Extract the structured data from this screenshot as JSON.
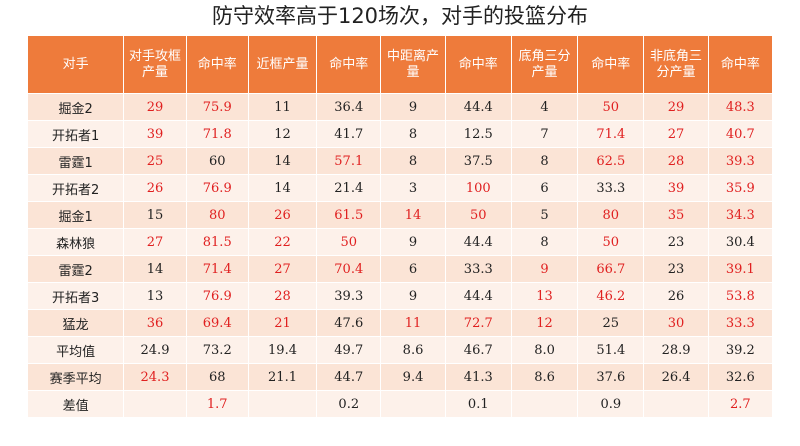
{
  "title": "防守效率高于120场次，对手的投篮分布",
  "headers": [
    "对手",
    "对手攻框产量",
    "命中率",
    "近框产量",
    "命中率",
    "中距离产量",
    "命中率",
    "底角三分产量",
    "命中率",
    "非底角三分产量",
    "命中率"
  ],
  "colors": {
    "header_bg": "#ee7b3b",
    "row_odd": "#fbe4d6",
    "row_even": "#fdf1ea",
    "highlight_text": "#e02020",
    "normal_text": "#222222"
  },
  "rows": [
    {
      "cells": [
        "掘金2",
        "29",
        "75.9",
        "11",
        "36.4",
        "9",
        "44.4",
        "4",
        "50",
        "29",
        "48.3"
      ],
      "red": [
        1,
        2,
        8,
        9,
        10
      ]
    },
    {
      "cells": [
        "开拓者1",
        "39",
        "71.8",
        "12",
        "41.7",
        "8",
        "12.5",
        "7",
        "71.4",
        "27",
        "40.7"
      ],
      "red": [
        1,
        2,
        8,
        9,
        10
      ]
    },
    {
      "cells": [
        "雷霆1",
        "25",
        "60",
        "14",
        "57.1",
        "8",
        "37.5",
        "8",
        "62.5",
        "28",
        "39.3"
      ],
      "red": [
        1,
        4,
        8,
        9,
        10
      ]
    },
    {
      "cells": [
        "开拓者2",
        "26",
        "76.9",
        "14",
        "21.4",
        "3",
        "100",
        "6",
        "33.3",
        "39",
        "35.9"
      ],
      "red": [
        1,
        2,
        6,
        9,
        10
      ]
    },
    {
      "cells": [
        "掘金1",
        "15",
        "80",
        "26",
        "61.5",
        "14",
        "50",
        "5",
        "80",
        "35",
        "34.3"
      ],
      "red": [
        2,
        3,
        4,
        5,
        6,
        8,
        9,
        10
      ]
    },
    {
      "cells": [
        "森林狼",
        "27",
        "81.5",
        "22",
        "50",
        "9",
        "44.4",
        "8",
        "50",
        "23",
        "30.4"
      ],
      "red": [
        1,
        2,
        3,
        4,
        8
      ]
    },
    {
      "cells": [
        "雷霆2",
        "14",
        "71.4",
        "27",
        "70.4",
        "6",
        "33.3",
        "9",
        "66.7",
        "23",
        "39.1"
      ],
      "red": [
        2,
        3,
        4,
        7,
        8,
        10
      ]
    },
    {
      "cells": [
        "开拓者3",
        "13",
        "76.9",
        "28",
        "39.3",
        "9",
        "44.4",
        "13",
        "46.2",
        "26",
        "53.8"
      ],
      "red": [
        2,
        3,
        7,
        8,
        10
      ]
    },
    {
      "cells": [
        "猛龙",
        "36",
        "69.4",
        "21",
        "47.6",
        "11",
        "72.7",
        "12",
        "25",
        "30",
        "33.3"
      ],
      "red": [
        1,
        2,
        3,
        5,
        6,
        7,
        9,
        10
      ]
    },
    {
      "cells": [
        "平均值",
        "24.9",
        "73.2",
        "19.4",
        "49.7",
        "8.6",
        "46.7",
        "8.0",
        "51.4",
        "28.9",
        "39.2"
      ],
      "red": []
    },
    {
      "cells": [
        "赛季平均",
        "24.3",
        "68",
        "21.1",
        "44.7",
        "9.4",
        "41.3",
        "8.6",
        "37.6",
        "26.4",
        "32.6"
      ],
      "red": [
        1
      ]
    },
    {
      "cells": [
        "差值",
        "",
        "1.7",
        "",
        "0.2",
        "",
        "0.1",
        "",
        "0.9",
        "",
        "2.7"
      ],
      "red": [
        2,
        10
      ]
    }
  ]
}
